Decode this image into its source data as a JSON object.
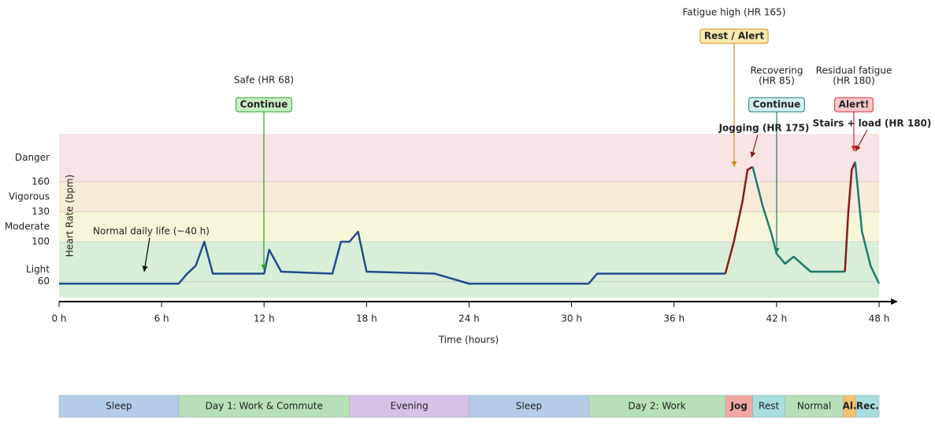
{
  "chart_data": {
    "type": "line",
    "x_label": "Time (hours)",
    "y_label": "Heart Rate (bpm)",
    "xlim": [
      0,
      48
    ],
    "ylim": [
      44,
      208
    ],
    "xticks": [
      {
        "value": 0,
        "label": "0 h"
      },
      {
        "value": 6,
        "label": "6 h"
      },
      {
        "value": 12,
        "label": "12 h"
      },
      {
        "value": 18,
        "label": "18 h"
      },
      {
        "value": 24,
        "label": "24 h"
      },
      {
        "value": 30,
        "label": "30 h"
      },
      {
        "value": 36,
        "label": "36 h"
      },
      {
        "value": 42,
        "label": "42 h"
      },
      {
        "value": 48,
        "label": "48 h"
      }
    ],
    "yticks": [
      60,
      100,
      130,
      160
    ],
    "zones": [
      {
        "label": "Light",
        "from": 44,
        "to": 100,
        "color": "#d8eed8",
        "text_color": "#2e7d32"
      },
      {
        "label": "Moderate",
        "from": 100,
        "to": 130,
        "color": "#f8f6d8",
        "text_color": "#7b3fa0"
      },
      {
        "label": "Vigorous",
        "from": 130,
        "to": 160,
        "color": "#f8ebd8",
        "text_color": "#d9730d"
      },
      {
        "label": "Danger",
        "from": 160,
        "to": 208,
        "color": "#f8e4e4",
        "text_color": "#d32f2f"
      }
    ],
    "series": [
      {
        "color": "#1f4e8c",
        "x": [
          0,
          7,
          7.5,
          8,
          8.5,
          9,
          12,
          12.3,
          13,
          16,
          16.5,
          17,
          17.5,
          18,
          22,
          24,
          31,
          31.5,
          39
        ],
        "values": [
          58,
          58,
          68,
          76,
          100,
          68,
          68,
          92,
          70,
          68,
          100,
          100,
          110,
          70,
          68,
          58,
          58,
          68,
          68
        ]
      },
      {
        "color": "#8b1a1a",
        "x": [
          39,
          39.5,
          40,
          40.3,
          40.6
        ],
        "values": [
          68,
          100,
          140,
          172,
          175
        ]
      },
      {
        "color": "#1f7a70",
        "x": [
          40.6,
          41.2,
          41.7,
          42,
          42.5,
          43,
          44,
          46
        ],
        "values": [
          175,
          135,
          108,
          88,
          78,
          85,
          70,
          70
        ]
      },
      {
        "color": "#8b1a1a",
        "x": [
          46,
          46.2,
          46.4,
          46.6
        ],
        "values": [
          70,
          130,
          172,
          180
        ]
      },
      {
        "color": "#1f7a70",
        "x": [
          46.6,
          47,
          47.5,
          48
        ],
        "values": [
          180,
          110,
          76,
          58
        ]
      }
    ],
    "annotations": [
      {
        "text": [
          "Normal daily life (~40 h)"
        ],
        "color": "#000000"
      },
      {
        "text": [
          "Safe (HR 68)"
        ],
        "color": "#000000",
        "box": "Continue",
        "box_color": "#2ca02c",
        "box_fill": "#c8f0c8"
      },
      {
        "text": [
          "Fatigue high (HR 165)"
        ],
        "color": "#000000",
        "box": "Rest / Alert",
        "box_color": "#c8900a",
        "box_fill": "#fbe8b0"
      },
      {
        "text": [
          "Recovering",
          "(HR 85)"
        ],
        "color": "#000000",
        "box": "Continue",
        "box_color": "#1f7a70",
        "box_fill": "#d0f0ee"
      },
      {
        "text": [
          "Residual fatigue",
          "(HR 180)"
        ],
        "color": "#000000",
        "box": "Alert!",
        "box_color": "#d32f2f",
        "box_fill": "#fbc8c8"
      },
      {
        "text": [
          "Jogging (HR 175)"
        ],
        "color": "#8b1a1a"
      },
      {
        "text": [
          "Stairs + load (HR 180)"
        ],
        "color": "#8b1a1a"
      }
    ],
    "timeline": [
      {
        "label": "Sleep",
        "start": 0,
        "end": 7,
        "color": "#b3cde9",
        "text_color": "#3b5a8a"
      },
      {
        "label": "Day 1: Work & Commute",
        "start": 7,
        "end": 17,
        "color": "#b8e0b8",
        "text_color": "#2e5e2e"
      },
      {
        "label": "Evening",
        "start": 17,
        "end": 24,
        "color": "#d6c2e6",
        "text_color": "#6a3d9a"
      },
      {
        "label": "Sleep",
        "start": 24,
        "end": 31,
        "color": "#b3cde9",
        "text_color": "#3b5a8a"
      },
      {
        "label": "Day 2: Work",
        "start": 31,
        "end": 39,
        "color": "#b8e0b8",
        "text_color": "#2e5e2e"
      },
      {
        "label": "Jog",
        "start": 39,
        "end": 40.6,
        "color": "#f0a8a0",
        "text_color": "#8b1a1a"
      },
      {
        "label": "Rest",
        "start": 40.6,
        "end": 42.5,
        "color": "#a8dede",
        "text_color": "#1f7a70"
      },
      {
        "label": "Normal",
        "start": 42.5,
        "end": 45.9,
        "color": "#b8e0b8",
        "text_color": "#2e5e2e"
      },
      {
        "label": "Al.",
        "start": 45.9,
        "end": 46.65,
        "color": "#f5c070",
        "text_color": "#7a4a00"
      },
      {
        "label": "Rec.",
        "start": 46.65,
        "end": 48,
        "color": "#a8dede",
        "text_color": "#1f7a70"
      }
    ]
  }
}
